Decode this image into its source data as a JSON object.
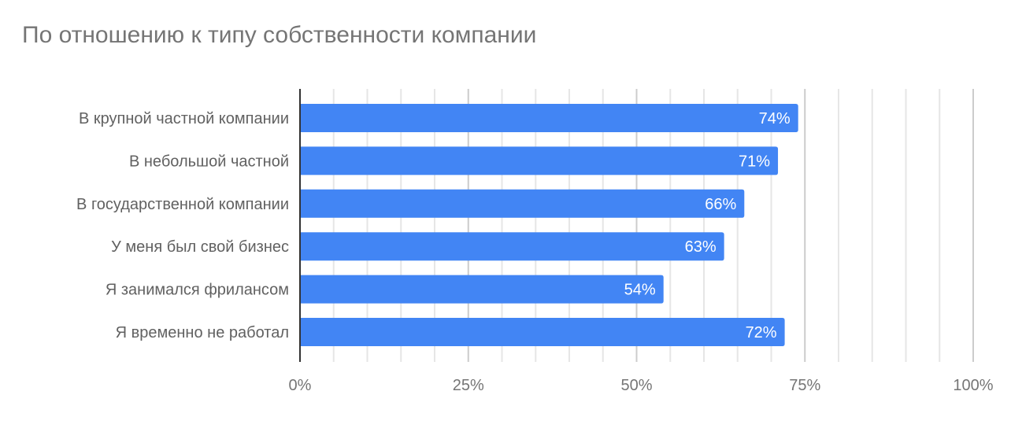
{
  "chart_data": {
    "type": "bar",
    "orientation": "horizontal",
    "title": "По отношению к типу собственности компании",
    "categories": [
      "В крупной частной компании",
      "В небольшой частной",
      "В государственной компании",
      "У меня был свой бизнес",
      "Я занимался фрилансом",
      "Я временно не работал"
    ],
    "values": [
      74,
      71,
      66,
      63,
      54,
      72
    ],
    "data_labels": [
      "74%",
      "71%",
      "66%",
      "63%",
      "54%",
      "72%"
    ],
    "xlim": [
      0,
      100
    ],
    "x_ticks": [
      "0%",
      "25%",
      "50%",
      "75%",
      "100%"
    ],
    "x_tick_values": [
      0,
      25,
      50,
      75,
      100
    ],
    "grid": true,
    "bar_color": "#4285f4",
    "xlabel": "",
    "ylabel": ""
  }
}
